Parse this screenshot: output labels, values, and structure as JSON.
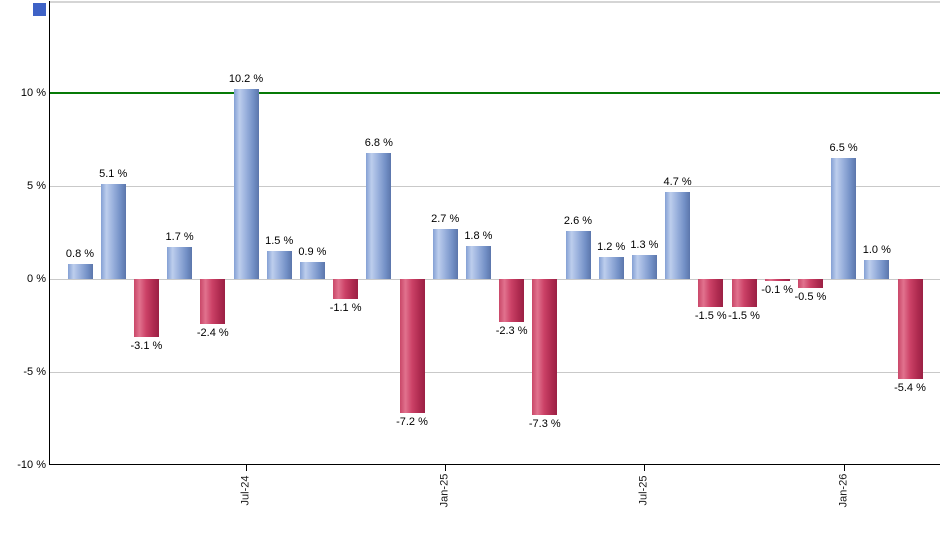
{
  "chart": {
    "corner_marker_color": "#3E62C6",
    "background_color": "#FFFFFF"
  },
  "chart_data": {
    "type": "bar",
    "title": "",
    "xlabel": "",
    "ylabel": "",
    "values": [
      0.8,
      5.1,
      -3.1,
      1.7,
      -2.4,
      10.2,
      1.5,
      0.9,
      -1.1,
      6.8,
      -7.2,
      2.7,
      1.8,
      -2.3,
      -7.3,
      2.6,
      1.2,
      1.3,
      4.7,
      -1.5,
      -1.5,
      -0.1,
      -0.5,
      6.5,
      1.0,
      -5.4
    ],
    "bar_labels": [
      "0.8 %",
      "5.1 %",
      "-3.1 %",
      "1.7 %",
      "-2.4 %",
      "10.2 %",
      "1.5 %",
      "0.9 %",
      "-1.1 %",
      "6.8 %",
      "-7.2 %",
      "2.7 %",
      "1.8 %",
      "-2.3 %",
      "-7.3 %",
      "2.6 %",
      "1.2 %",
      "1.3 %",
      "4.7 %",
      "-1.5 %",
      "-1.5 %",
      "-0.1 %",
      "-0.5 %",
      "6.5 %",
      "1.0 %",
      "-5.4 %"
    ],
    "bar_colors": {
      "positive": "#7390C6",
      "negative": "#C94768"
    },
    "threshold_line": {
      "value": 10,
      "color": "#077A07"
    },
    "gridline_color": "#C9C9C9",
    "grid": true,
    "legend_position": "none",
    "y_axis": {
      "unit": "%",
      "range": [
        -10,
        15
      ],
      "ticks": [
        {
          "value": 10,
          "label": "10 %",
          "gridline": false
        },
        {
          "value": 5,
          "label": "5 %",
          "gridline": true
        },
        {
          "value": 0,
          "label": "0 %",
          "gridline": true
        },
        {
          "value": -5,
          "label": "-5 %",
          "gridline": true
        },
        {
          "value": -10,
          "label": "-10 %",
          "gridline": false
        }
      ]
    },
    "x_axis": {
      "ticks": [
        {
          "index": 5,
          "label": "Jul-24"
        },
        {
          "index": 11,
          "label": "Jan-25"
        },
        {
          "index": 17,
          "label": "Jul-25"
        },
        {
          "index": 23,
          "label": "Jan-26"
        }
      ]
    }
  }
}
